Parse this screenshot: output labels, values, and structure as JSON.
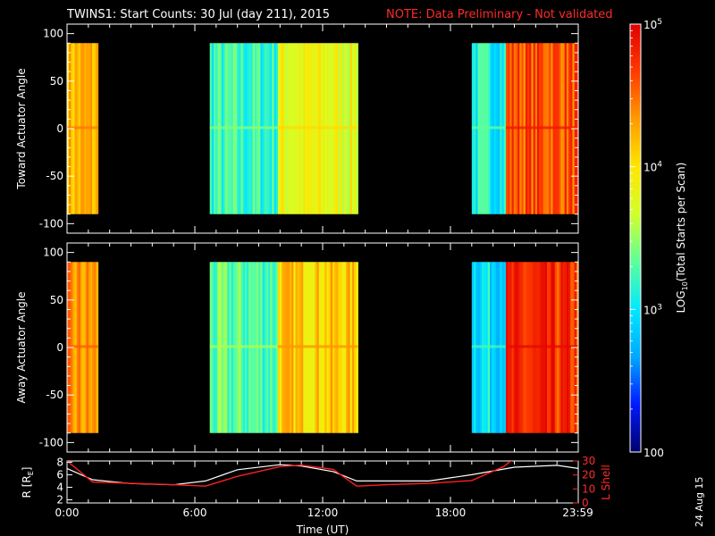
{
  "title": "TWINS1: Start Counts: 30 Jul (day 211), 2015",
  "note": "NOTE: Data Preliminary - Not validated",
  "stamp": "24 Aug 15",
  "chart_data": [
    {
      "type": "heatmap",
      "panel": "toward",
      "ylabel": "Toward Actuator Angle",
      "ylim": [
        -110,
        110
      ],
      "yticks": [
        "100",
        "50",
        "0",
        "-50",
        "-100"
      ],
      "ytick_values": [
        100,
        50,
        0,
        -50,
        -100
      ],
      "xlim_hours": [
        0,
        24
      ],
      "data_angle_range": [
        -90,
        90
      ],
      "segments": [
        {
          "start_hour": 0.0,
          "end_hour": 1.45,
          "log10_counts": 4.2
        },
        {
          "start_hour": 6.7,
          "end_hour": 9.9,
          "log10_counts": 3.2
        },
        {
          "start_hour": 9.9,
          "end_hour": 13.65,
          "log10_counts": 3.8
        },
        {
          "start_hour": 19.0,
          "end_hour": 20.6,
          "log10_counts": 3.1
        },
        {
          "start_hour": 20.6,
          "end_hour": 24.0,
          "log10_counts": 4.6
        }
      ]
    },
    {
      "type": "heatmap",
      "panel": "away",
      "ylabel": "Away Actuator Angle",
      "ylim": [
        -110,
        110
      ],
      "yticks": [
        "100",
        "50",
        "0",
        "-50",
        "-100"
      ],
      "ytick_values": [
        100,
        50,
        0,
        -50,
        -100
      ],
      "xlim_hours": [
        0,
        24
      ],
      "data_angle_range": [
        -90,
        90
      ],
      "segments": [
        {
          "start_hour": 0.0,
          "end_hour": 1.45,
          "log10_counts": 4.3
        },
        {
          "start_hour": 6.7,
          "end_hour": 9.9,
          "log10_counts": 3.3
        },
        {
          "start_hour": 9.9,
          "end_hour": 13.65,
          "log10_counts": 4.1
        },
        {
          "start_hour": 19.0,
          "end_hour": 20.6,
          "log10_counts": 3.0
        },
        {
          "start_hour": 20.6,
          "end_hour": 24.0,
          "log10_counts": 4.7
        }
      ]
    },
    {
      "type": "line",
      "panel": "orbit",
      "ylabel_left": "R [R",
      "ylabel_left_sub": "E",
      "ylabel_left_end": "]",
      "ylabel_right": "L Shell",
      "xlabel": "Time (UT)",
      "xticks": [
        "0:00",
        "6:00",
        "12:00",
        "18:00",
        "23:59"
      ],
      "xtick_hours": [
        0,
        6,
        12,
        18,
        23.98
      ],
      "ylim_left": [
        1.5,
        8.2
      ],
      "yticks_left": [
        "8",
        "6",
        "4",
        "2"
      ],
      "ytick_values_left": [
        8,
        6,
        4,
        2
      ],
      "ylim_right": [
        0,
        30
      ],
      "yticks_right": [
        "30",
        "20",
        "10",
        "0"
      ],
      "ytick_values_right": [
        30,
        20,
        10,
        0
      ],
      "series": [
        {
          "color": "#ffffff",
          "x_hours": [
            0,
            1.2,
            3,
            5,
            6.5,
            8,
            10,
            11,
            12.5,
            13.6,
            15,
            17,
            19,
            21,
            23,
            24
          ],
          "y_R": [
            7.0,
            5.2,
            4.6,
            4.4,
            5.0,
            6.8,
            7.6,
            7.4,
            6.5,
            5.0,
            5.0,
            5.0,
            6.0,
            7.2,
            7.5,
            7.0
          ]
        },
        {
          "color": "#ff2020",
          "x_hours": [
            0,
            1.2,
            3,
            5,
            6.5,
            8,
            10,
            11,
            12.5,
            13.6,
            15,
            17,
            19,
            20.5,
            21.0
          ],
          "y_L": [
            30,
            15,
            14,
            13,
            12,
            19,
            26,
            27,
            24,
            12,
            13,
            14,
            16,
            26,
            32
          ]
        }
      ]
    }
  ],
  "colorbar": {
    "label_prefix": "LOG",
    "label_sub": "10",
    "label_suffix": "(Total Starts per Scan)",
    "tick_labels": [
      {
        "base": "10",
        "exp": "5",
        "value": 100000
      },
      {
        "base": "10",
        "exp": "4",
        "value": 10000
      },
      {
        "base": "10",
        "exp": "3",
        "value": 1000
      },
      {
        "base": "100",
        "exp": "",
        "value": 100
      }
    ],
    "colors": [
      "#00006a",
      "#0018ff",
      "#00a8ff",
      "#00e8ff",
      "#5cff9c",
      "#d2ff2a",
      "#ffe600",
      "#ff9b00",
      "#ff3a00",
      "#e00000"
    ]
  }
}
